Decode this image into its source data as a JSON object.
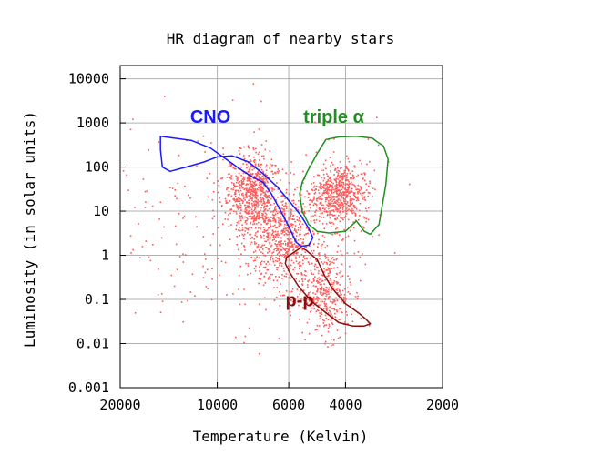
{
  "chart_data": {
    "type": "scatter",
    "title": "HR diagram of nearby stars",
    "xlabel": "Temperature (Kelvin)",
    "ylabel": "Luminosity (in solar units)",
    "x_scale": "log-reversed",
    "y_scale": "log",
    "xlim": [
      20000,
      2000
    ],
    "ylim": [
      0.001,
      20000
    ],
    "grid": true,
    "x_ticks": [
      {
        "value": 20000,
        "label": "20000"
      },
      {
        "value": 10000,
        "label": "10000"
      },
      {
        "value": 6000,
        "label": "6000"
      },
      {
        "value": 4000,
        "label": "4000"
      },
      {
        "value": 2000,
        "label": "2000"
      }
    ],
    "y_ticks": [
      {
        "value": 10000,
        "label": "10000"
      },
      {
        "value": 1000,
        "label": "1000"
      },
      {
        "value": 100,
        "label": "100"
      },
      {
        "value": 10,
        "label": "10"
      },
      {
        "value": 1,
        "label": "1"
      },
      {
        "value": 0.1,
        "label": "0.1"
      },
      {
        "value": 0.01,
        "label": "0.01"
      },
      {
        "value": 0.001,
        "label": "0.001"
      }
    ],
    "point_color": "#ff5a5a",
    "star_groups": [
      {
        "T_center": 7800,
        "L_center": 25,
        "sigma_logT": 0.045,
        "sigma_logL": 0.45,
        "weight": 0.28
      },
      {
        "T_center": 6300,
        "L_center": 2.0,
        "sigma_logT": 0.05,
        "sigma_logL": 0.5,
        "weight": 0.22
      },
      {
        "T_center": 4600,
        "L_center": 0.15,
        "sigma_logT": 0.04,
        "sigma_logL": 0.5,
        "weight": 0.15
      },
      {
        "T_center": 4200,
        "L_center": 25,
        "sigma_logT": 0.045,
        "sigma_logL": 0.35,
        "weight": 0.25
      },
      {
        "T_center": 10000,
        "L_center": 5,
        "sigma_logT": 0.25,
        "sigma_logL": 1.3,
        "weight": 0.1
      }
    ],
    "regions": [
      {
        "label": "CNO",
        "color": "#1a1aff",
        "label_T": 10500,
        "label_L": 1000,
        "outline": [
          [
            15000,
            500
          ],
          [
            12000,
            400
          ],
          [
            10500,
            270
          ],
          [
            9600,
            170
          ],
          [
            8500,
            90
          ],
          [
            7800,
            60
          ],
          [
            7200,
            45
          ],
          [
            6800,
            25
          ],
          [
            6300,
            9
          ],
          [
            5900,
            3.5
          ],
          [
            5700,
            2.0
          ],
          [
            5500,
            1.6
          ],
          [
            5200,
            1.7
          ],
          [
            5050,
            2.5
          ],
          [
            5200,
            4
          ],
          [
            5500,
            8
          ],
          [
            5900,
            15
          ],
          [
            6500,
            35
          ],
          [
            7200,
            70
          ],
          [
            8000,
            130
          ],
          [
            9000,
            180
          ],
          [
            10000,
            170
          ],
          [
            11000,
            130
          ],
          [
            12500,
            100
          ],
          [
            14000,
            80
          ],
          [
            14800,
            100
          ],
          [
            15000,
            250
          ],
          [
            15000,
            500
          ]
        ]
      },
      {
        "label": "triple α",
        "color": "#1f8f1f",
        "label_T": 4350,
        "label_L": 1000,
        "outline": [
          [
            4900,
            200
          ],
          [
            4600,
            420
          ],
          [
            4200,
            480
          ],
          [
            3700,
            500
          ],
          [
            3300,
            450
          ],
          [
            3200,
            380
          ],
          [
            3050,
            300
          ],
          [
            2950,
            150
          ],
          [
            3000,
            40
          ],
          [
            3150,
            5
          ],
          [
            3350,
            3
          ],
          [
            3500,
            3.5
          ],
          [
            3700,
            6
          ],
          [
            4000,
            3.5
          ],
          [
            4500,
            3.2
          ],
          [
            4900,
            3.5
          ],
          [
            5200,
            5
          ],
          [
            5450,
            10
          ],
          [
            5550,
            25
          ],
          [
            5450,
            45
          ],
          [
            5250,
            80
          ],
          [
            4900,
            200
          ]
        ]
      },
      {
        "label": "p-p",
        "color": "#8b0d0d",
        "label_T": 5550,
        "label_L": 0.07,
        "outline": [
          [
            6100,
            0.9
          ],
          [
            5500,
            1.5
          ],
          [
            5300,
            1.3
          ],
          [
            4900,
            0.8
          ],
          [
            4650,
            0.35
          ],
          [
            4400,
            0.18
          ],
          [
            4000,
            0.08
          ],
          [
            3650,
            0.05
          ],
          [
            3450,
            0.035
          ],
          [
            3350,
            0.028
          ],
          [
            3500,
            0.025
          ],
          [
            3800,
            0.025
          ],
          [
            4200,
            0.03
          ],
          [
            4600,
            0.05
          ],
          [
            5100,
            0.09
          ],
          [
            5600,
            0.2
          ],
          [
            5950,
            0.4
          ],
          [
            6150,
            0.65
          ],
          [
            6100,
            0.9
          ]
        ]
      }
    ]
  }
}
